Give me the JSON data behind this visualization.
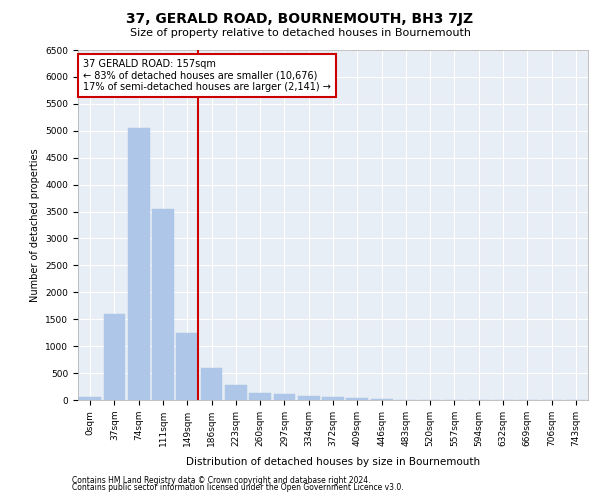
{
  "title": "37, GERALD ROAD, BOURNEMOUTH, BH3 7JZ",
  "subtitle": "Size of property relative to detached houses in Bournemouth",
  "xlabel": "Distribution of detached houses by size in Bournemouth",
  "ylabel": "Number of detached properties",
  "footer1": "Contains HM Land Registry data © Crown copyright and database right 2024.",
  "footer2": "Contains public sector information licensed under the Open Government Licence v3.0.",
  "annotation_title": "37 GERALD ROAD: 157sqm",
  "annotation_line1": "← 83% of detached houses are smaller (10,676)",
  "annotation_line2": "17% of semi-detached houses are larger (2,141) →",
  "bar_color": "#aec6e8",
  "bar_edgecolor": "#aec6e8",
  "vline_color": "#cc0000",
  "annotation_box_color": "#cc0000",
  "categories": [
    "0sqm",
    "37sqm",
    "74sqm",
    "111sqm",
    "149sqm",
    "186sqm",
    "223sqm",
    "260sqm",
    "297sqm",
    "334sqm",
    "372sqm",
    "409sqm",
    "446sqm",
    "483sqm",
    "520sqm",
    "557sqm",
    "594sqm",
    "632sqm",
    "669sqm",
    "706sqm",
    "743sqm"
  ],
  "values": [
    50,
    1600,
    5050,
    3550,
    1250,
    600,
    280,
    130,
    120,
    80,
    50,
    30,
    15,
    5,
    2,
    1,
    1,
    0,
    0,
    0,
    0
  ],
  "ylim": [
    0,
    6500
  ],
  "yticks": [
    0,
    500,
    1000,
    1500,
    2000,
    2500,
    3000,
    3500,
    4000,
    4500,
    5000,
    5500,
    6000,
    6500
  ],
  "vline_x": 4.43,
  "bg_color": "#e8eef5",
  "plot_bg": "#e8eef5",
  "grid_color": "#ffffff",
  "title_fontsize": 10,
  "subtitle_fontsize": 8,
  "ylabel_fontsize": 7,
  "xlabel_fontsize": 7.5,
  "tick_fontsize": 6.5,
  "footer_fontsize": 5.5,
  "annot_fontsize": 7
}
